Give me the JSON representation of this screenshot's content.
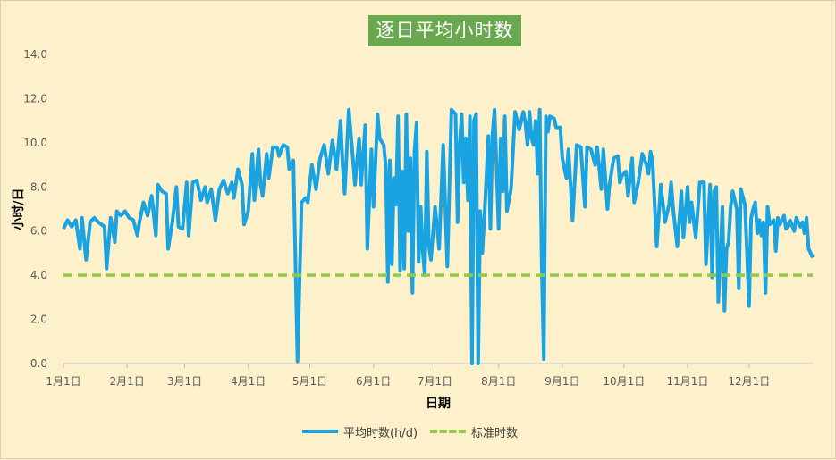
{
  "chart_data": {
    "type": "line",
    "title": "逐日平均小时数",
    "xlabel": "日期",
    "ylabel": "小时/日",
    "ylim": [
      0,
      14
    ],
    "y_ticks": [
      "0.0",
      "2.0",
      "4.0",
      "6.0",
      "8.0",
      "10.0",
      "12.0",
      "14.0"
    ],
    "x_ticks": [
      {
        "label": "1月1日",
        "day": 1
      },
      {
        "label": "2月1日",
        "day": 32
      },
      {
        "label": "3月1日",
        "day": 60
      },
      {
        "label": "4月1日",
        "day": 91
      },
      {
        "label": "5月1日",
        "day": 121
      },
      {
        "label": "6月1日",
        "day": 152
      },
      {
        "label": "7月1日",
        "day": 182
      },
      {
        "label": "8月1日",
        "day": 213
      },
      {
        "label": "9月1日",
        "day": 244
      },
      {
        "label": "10月1日",
        "day": 274
      },
      {
        "label": "11月1日",
        "day": 305
      },
      {
        "label": "12月1日",
        "day": 335
      }
    ],
    "x_range": [
      1,
      366
    ],
    "grid": false,
    "legend_position": "bottom",
    "series": [
      {
        "name": "平均时数(h/d)",
        "color": "#1aa3e0",
        "points": [
          [
            1,
            6.1
          ],
          [
            3,
            6.5
          ],
          [
            5,
            6.2
          ],
          [
            7,
            6.5
          ],
          [
            9,
            5.2
          ],
          [
            10,
            6.6
          ],
          [
            12,
            4.7
          ],
          [
            14,
            6.4
          ],
          [
            16,
            6.6
          ],
          [
            18,
            6.4
          ],
          [
            21,
            6.2
          ],
          [
            22,
            4.3
          ],
          [
            24,
            6.6
          ],
          [
            26,
            5.5
          ],
          [
            27,
            6.9
          ],
          [
            29,
            6.7
          ],
          [
            31,
            6.9
          ],
          [
            33,
            6.6
          ],
          [
            35,
            6.5
          ],
          [
            37,
            5.8
          ],
          [
            38,
            6.4
          ],
          [
            40,
            7.3
          ],
          [
            42,
            6.7
          ],
          [
            44,
            7.6
          ],
          [
            46,
            5.8
          ],
          [
            47,
            8.1
          ],
          [
            49,
            7.8
          ],
          [
            51,
            7.7
          ],
          [
            52,
            5.2
          ],
          [
            54,
            6.4
          ],
          [
            56,
            8.0
          ],
          [
            57,
            6.2
          ],
          [
            59,
            6.1
          ],
          [
            61,
            8.2
          ],
          [
            62,
            5.8
          ],
          [
            64,
            8.2
          ],
          [
            66,
            8.3
          ],
          [
            68,
            7.4
          ],
          [
            70,
            8.0
          ],
          [
            71,
            7.3
          ],
          [
            73,
            7.9
          ],
          [
            75,
            6.5
          ],
          [
            77,
            7.9
          ],
          [
            79,
            8.3
          ],
          [
            81,
            7.7
          ],
          [
            83,
            8.2
          ],
          [
            84,
            7.5
          ],
          [
            86,
            8.8
          ],
          [
            88,
            8.1
          ],
          [
            89,
            6.3
          ],
          [
            91,
            6.9
          ],
          [
            93,
            9.5
          ],
          [
            94,
            7.4
          ],
          [
            96,
            9.7
          ],
          [
            97,
            8.1
          ],
          [
            98,
            7.6
          ],
          [
            100,
            9.5
          ],
          [
            101,
            8.4
          ],
          [
            103,
            9.8
          ],
          [
            105,
            9.8
          ],
          [
            106,
            9.4
          ],
          [
            108,
            9.9
          ],
          [
            110,
            9.8
          ],
          [
            111,
            8.8
          ],
          [
            113,
            9.2
          ],
          [
            115,
            0.1
          ],
          [
            117,
            7.3
          ],
          [
            119,
            7.5
          ],
          [
            120,
            7.3
          ],
          [
            122,
            9.0
          ],
          [
            124,
            7.9
          ],
          [
            126,
            9.3
          ],
          [
            128,
            9.9
          ],
          [
            130,
            8.6
          ],
          [
            132,
            10.1
          ],
          [
            134,
            8.8
          ],
          [
            136,
            11.0
          ],
          [
            137,
            9.0
          ],
          [
            138,
            7.7
          ],
          [
            140,
            11.5
          ],
          [
            142,
            9.3
          ],
          [
            143,
            8.1
          ],
          [
            145,
            10.2
          ],
          [
            146,
            8.1
          ],
          [
            148,
            10.8
          ],
          [
            149,
            5.2
          ],
          [
            151,
            9.7
          ],
          [
            152,
            7.1
          ],
          [
            154,
            11.3
          ],
          [
            155,
            10.2
          ],
          [
            157,
            9.9
          ],
          [
            158,
            8.9
          ],
          [
            159,
            3.7
          ],
          [
            160,
            9.2
          ],
          [
            161,
            4.5
          ],
          [
            162,
            8.4
          ],
          [
            163,
            7.2
          ],
          [
            164,
            11.2
          ],
          [
            165,
            4.2
          ],
          [
            166,
            8.7
          ],
          [
            167,
            4.3
          ],
          [
            168,
            11.3
          ],
          [
            169,
            6.0
          ],
          [
            170,
            9.3
          ],
          [
            171,
            3.2
          ],
          [
            172,
            9.6
          ],
          [
            173,
            10.9
          ],
          [
            174,
            4.6
          ],
          [
            175,
            7.1
          ],
          [
            176,
            5.1
          ],
          [
            177,
            4.0
          ],
          [
            178,
            9.6
          ],
          [
            179,
            5.3
          ],
          [
            180,
            4.7
          ],
          [
            182,
            7.1
          ],
          [
            183,
            6.2
          ],
          [
            184,
            5.2
          ],
          [
            186,
            9.9
          ],
          [
            188,
            4.4
          ],
          [
            190,
            11.5
          ],
          [
            192,
            11.3
          ],
          [
            193,
            6.4
          ],
          [
            194,
            9.9
          ],
          [
            195,
            11.3
          ],
          [
            196,
            8.2
          ],
          [
            197,
            10.2
          ],
          [
            198,
            7.4
          ],
          [
            199,
            11.2
          ],
          [
            200,
            0.0
          ],
          [
            201,
            11.0
          ],
          [
            202,
            11.3
          ],
          [
            203,
            0.0
          ],
          [
            204,
            6.9
          ],
          [
            205,
            5.0
          ],
          [
            206,
            6.6
          ],
          [
            208,
            10.3
          ],
          [
            209,
            6.1
          ],
          [
            210,
            10.4
          ],
          [
            211,
            11.5
          ],
          [
            212,
            8.8
          ],
          [
            213,
            6.1
          ],
          [
            214,
            10.2
          ],
          [
            215,
            7.8
          ],
          [
            216,
            11.2
          ],
          [
            217,
            6.9
          ],
          [
            219,
            7.9
          ],
          [
            221,
            11.4
          ],
          [
            223,
            10.6
          ],
          [
            225,
            11.4
          ],
          [
            226,
            10.9
          ],
          [
            227,
            9.9
          ],
          [
            228,
            11.4
          ],
          [
            229,
            10.2
          ],
          [
            230,
            9.9
          ],
          [
            231,
            11.0
          ],
          [
            232,
            8.6
          ],
          [
            233,
            11.5
          ],
          [
            234,
            4.4
          ],
          [
            235,
            0.2
          ],
          [
            236,
            11.2
          ],
          [
            237,
            10.5
          ],
          [
            238,
            11.2
          ],
          [
            240,
            11.1
          ],
          [
            241,
            10.7
          ],
          [
            243,
            10.7
          ],
          [
            244,
            9.3
          ],
          [
            246,
            8.4
          ],
          [
            247,
            9.7
          ],
          [
            249,
            6.5
          ],
          [
            251,
            9.9
          ],
          [
            253,
            9.8
          ],
          [
            255,
            7.1
          ],
          [
            256,
            9.8
          ],
          [
            258,
            9.7
          ],
          [
            260,
            9.0
          ],
          [
            261,
            9.8
          ],
          [
            263,
            7.9
          ],
          [
            264,
            9.7
          ],
          [
            266,
            7.0
          ],
          [
            267,
            8.1
          ],
          [
            269,
            9.3
          ],
          [
            271,
            9.4
          ],
          [
            272,
            8.2
          ],
          [
            273,
            8.5
          ],
          [
            275,
            8.7
          ],
          [
            276,
            7.6
          ],
          [
            278,
            9.3
          ],
          [
            279,
            7.3
          ],
          [
            281,
            8.2
          ],
          [
            283,
            9.5
          ],
          [
            285,
            9.0
          ],
          [
            286,
            8.6
          ],
          [
            287,
            9.6
          ],
          [
            288,
            9.1
          ],
          [
            290,
            5.3
          ],
          [
            292,
            8.1
          ],
          [
            294,
            6.4
          ],
          [
            296,
            7.2
          ],
          [
            297,
            8.2
          ],
          [
            298,
            7.0
          ],
          [
            300,
            5.3
          ],
          [
            302,
            7.8
          ],
          [
            303,
            5.7
          ],
          [
            305,
            8.0
          ],
          [
            306,
            6.4
          ],
          [
            307,
            7.3
          ],
          [
            309,
            5.7
          ],
          [
            311,
            8.2
          ],
          [
            313,
            8.2
          ],
          [
            314,
            4.5
          ],
          [
            316,
            8.1
          ],
          [
            317,
            3.9
          ],
          [
            318,
            7.8
          ],
          [
            319,
            8.0
          ],
          [
            320,
            2.8
          ],
          [
            322,
            7.1
          ],
          [
            323,
            2.4
          ],
          [
            324,
            5.2
          ],
          [
            325,
            5.5
          ],
          [
            326,
            7.1
          ],
          [
            327,
            7.8
          ],
          [
            329,
            7.0
          ],
          [
            330,
            3.4
          ],
          [
            331,
            7.9
          ],
          [
            333,
            7.2
          ],
          [
            334,
            5.0
          ],
          [
            335,
            2.6
          ],
          [
            336,
            6.6
          ],
          [
            337,
            7.0
          ],
          [
            338,
            7.3
          ],
          [
            339,
            5.9
          ],
          [
            340,
            6.5
          ],
          [
            341,
            5.8
          ],
          [
            342,
            6.4
          ],
          [
            343,
            3.2
          ],
          [
            344,
            7.1
          ],
          [
            345,
            6.3
          ],
          [
            347,
            6.5
          ],
          [
            348,
            5.1
          ],
          [
            349,
            6.6
          ],
          [
            350,
            6.3
          ],
          [
            352,
            6.7
          ],
          [
            353,
            6.1
          ],
          [
            355,
            6.5
          ],
          [
            357,
            6.0
          ],
          [
            358,
            6.6
          ],
          [
            360,
            6.2
          ],
          [
            361,
            6.4
          ],
          [
            362,
            5.9
          ],
          [
            363,
            6.6
          ],
          [
            364,
            5.2
          ],
          [
            365,
            5.0
          ],
          [
            366,
            4.8
          ]
        ]
      },
      {
        "name": "标准时数",
        "color": "#92c94a",
        "dashed": true,
        "points": [
          [
            1,
            4.0
          ],
          [
            366,
            4.0
          ]
        ]
      }
    ]
  }
}
